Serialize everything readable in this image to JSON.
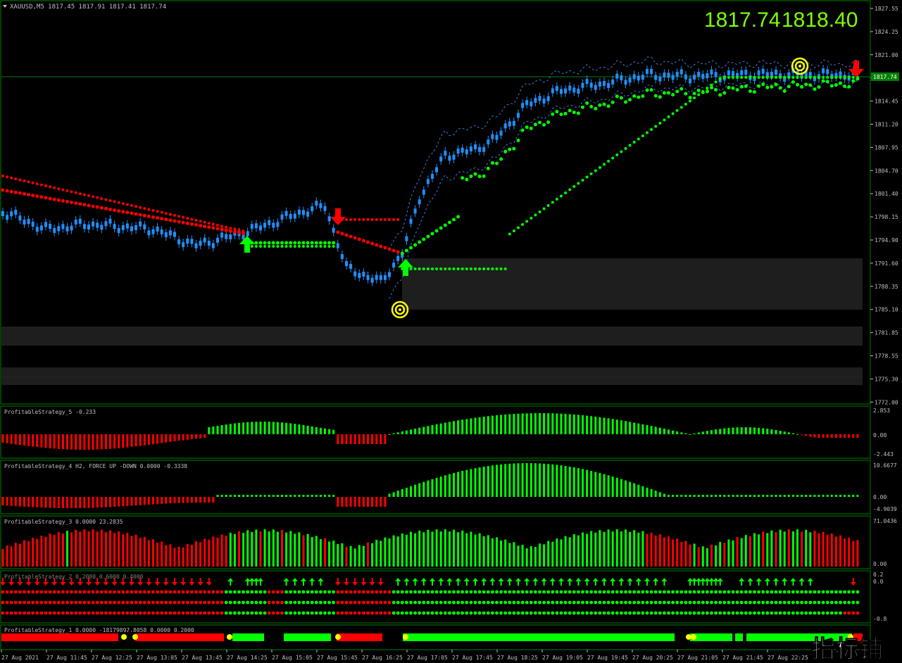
{
  "header": {
    "symbol_line": "XAUUSD,M5  1817.45 1817.91 1817.41 1817.74",
    "bid_label": "1817.74",
    "ask_label": "1818.40",
    "current_price_tag": "1817.74"
  },
  "price_axis": [
    "1827.55",
    "1824.25",
    "1821.00",
    "1817.74",
    "1814.45",
    "1811.20",
    "1807.95",
    "1804.70",
    "1801.40",
    "1798.15",
    "1794.90",
    "1791.60",
    "1788.35",
    "1785.10",
    "1781.85",
    "1778.55",
    "1775.30",
    "1772.00"
  ],
  "time_axis": [
    "27 Aug 2021",
    "27 Aug 11:45",
    "27 Aug 12:25",
    "27 Aug 13:05",
    "27 Aug 13:45",
    "27 Aug 14:25",
    "27 Aug 15:05",
    "27 Aug 15:45",
    "27 Aug 16:25",
    "27 Aug 17:05",
    "27 Aug 17:45",
    "27 Aug 18:25",
    "27 Aug 19:05",
    "27 Aug 19:45",
    "27 Aug 20:25",
    "27 Aug 21:05",
    "27 Aug 21:45",
    "27 Aug 22:25"
  ],
  "panels": [
    {
      "label": "ProfitableStrategy_5 -0.233",
      "ticks": [
        "2.853",
        "0.00",
        "-2.443"
      ]
    },
    {
      "label": "ProfitableStrategy_4  H2, FORCE UP -DOWN  0.0000 -0.3338",
      "ticks": [
        "10.6677",
        "0.00",
        "-4.9039"
      ]
    },
    {
      "label": "ProfitableStrategy_3  0.0000 23.2835",
      "ticks": [
        "71.0436",
        "0.00"
      ]
    },
    {
      "label": "ProfitableStrategy_2  0.2000 0.6000 0.4000",
      "ticks": [
        "0.2",
        "0.0",
        "-0.8"
      ]
    },
    {
      "label": "ProfitableStrategy_1 0.0000 -18179897.8058 0.0000 0.2000",
      "ticks": []
    }
  ],
  "watermark": "指标铺",
  "colors": {
    "bull": "#1e90ff",
    "green": "#00ff00",
    "red": "#ff0000",
    "grid": "#008000",
    "axis_text": "#c0c0c0",
    "signal": "#ffff00",
    "zone": "#1e1e1e"
  }
}
